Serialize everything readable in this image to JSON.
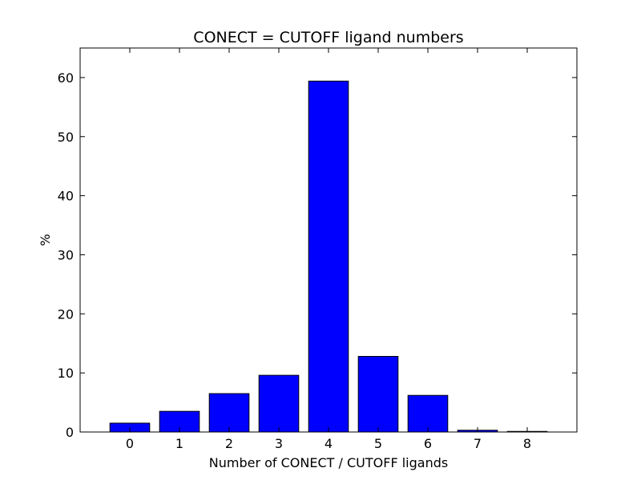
{
  "chart_data": {
    "type": "bar",
    "title": "CONECT = CUTOFF ligand numbers",
    "xlabel": "Number of CONECT / CUTOFF ligands",
    "ylabel": "%",
    "categories": [
      "0",
      "1",
      "2",
      "3",
      "4",
      "5",
      "6",
      "7",
      "8"
    ],
    "values": [
      1.5,
      3.5,
      6.5,
      9.6,
      59.4,
      12.8,
      6.2,
      0.3,
      0.1
    ],
    "ylim": [
      0,
      65
    ],
    "yticks": [
      0,
      10,
      20,
      30,
      40,
      50,
      60
    ],
    "yticks_labels": [
      "0",
      "10",
      "20",
      "30",
      "40",
      "50",
      "60"
    ],
    "grid": false,
    "bar_color": "#0000ff",
    "edge_color": "#000000"
  }
}
